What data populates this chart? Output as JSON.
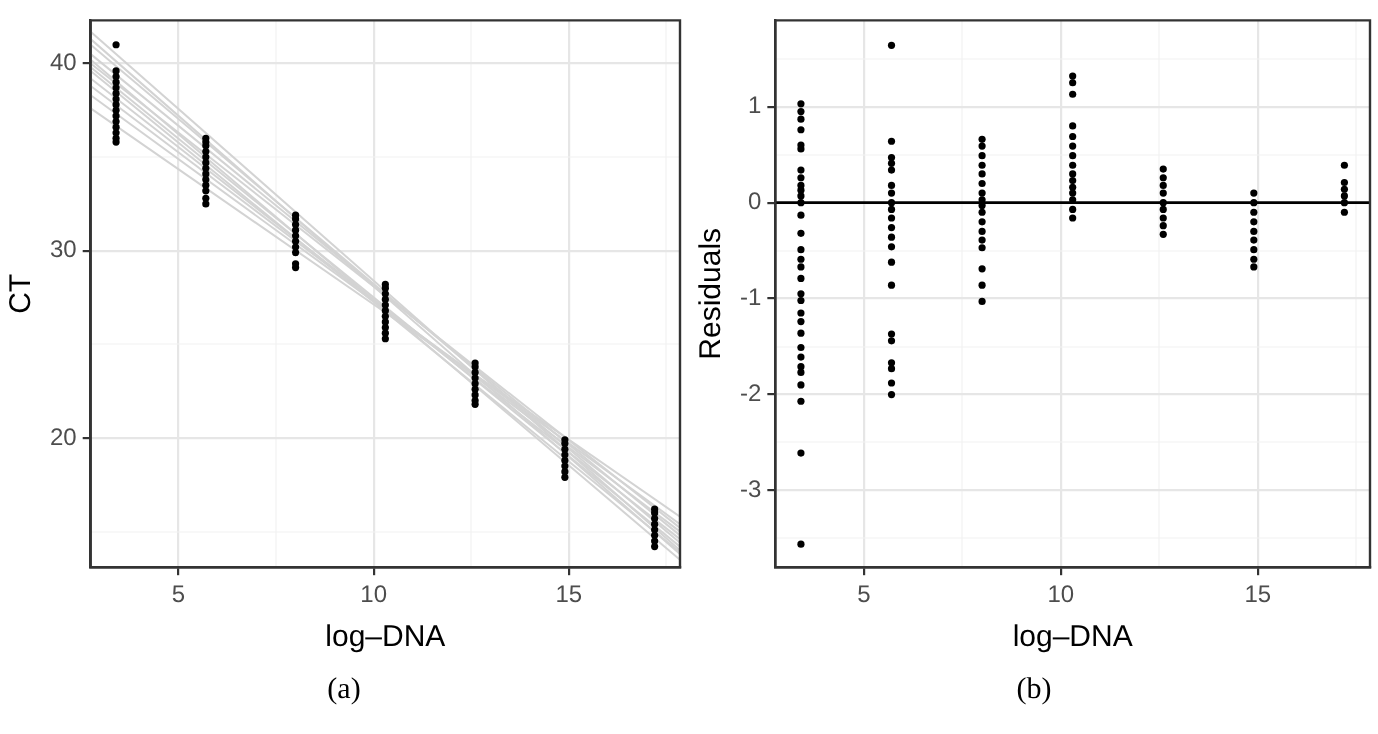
{
  "chart_data": [
    {
      "type": "scatter",
      "xlabel": "log–DNA",
      "ylabel": "CT",
      "annotations": [
        "(a)"
      ],
      "grid": true,
      "marker": "circle",
      "xlim": [
        2.75,
        17.85
      ],
      "xticks": [
        5,
        {
          "value": 7.5,
          "label": null
        },
        10,
        {
          "value": 12.5,
          "label": null
        },
        15,
        {
          "value": 17.5,
          "label": null
        }
      ],
      "ylim": [
        13.1,
        42.3
      ],
      "yticks": [
        {
          "value": 15,
          "label": null
        },
        20,
        {
          "value": 25,
          "label": null
        },
        30,
        {
          "value": 35,
          "label": null
        },
        40
      ],
      "series": [
        {
          "type": "line",
          "marker": "none",
          "color": "#d3d3d3",
          "x": [
            2.75,
            17.85
          ],
          "values": [
            41.7,
            14.0
          ]
        },
        {
          "type": "line",
          "marker": "none",
          "color": "#d3d3d3",
          "x": [
            2.75,
            17.85
          ],
          "values": [
            41.0,
            14.4
          ]
        },
        {
          "type": "line",
          "marker": "none",
          "color": "#d3d3d3",
          "x": [
            2.75,
            17.85
          ],
          "values": [
            40.5,
            14.8
          ]
        },
        {
          "type": "line",
          "marker": "none",
          "color": "#d3d3d3",
          "x": [
            2.75,
            17.85
          ],
          "values": [
            40.0,
            15.2
          ]
        },
        {
          "type": "line",
          "marker": "none",
          "color": "#d3d3d3",
          "x": [
            2.75,
            17.85
          ],
          "values": [
            39.6,
            13.9
          ]
        },
        {
          "type": "line",
          "marker": "none",
          "color": "#d3d3d3",
          "x": [
            2.75,
            17.85
          ],
          "values": [
            39.2,
            14.6
          ]
        },
        {
          "type": "line",
          "marker": "none",
          "color": "#d3d3d3",
          "x": [
            2.75,
            17.85
          ],
          "values": [
            38.8,
            15.0
          ]
        },
        {
          "type": "line",
          "marker": "none",
          "color": "#d3d3d3",
          "x": [
            2.75,
            17.85
          ],
          "values": [
            38.3,
            15.4
          ]
        },
        {
          "type": "line",
          "marker": "none",
          "color": "#d3d3d3",
          "x": [
            2.75,
            17.85
          ],
          "values": [
            37.6,
            15.8
          ]
        },
        {
          "type": "line",
          "marker": "none",
          "color": "#d3d3d3",
          "x": [
            2.75,
            17.85
          ],
          "values": [
            40.2,
            13.5
          ]
        },
        {
          "type": "line",
          "marker": "none",
          "color": "#d3d3d3",
          "x": [
            2.75,
            17.85
          ],
          "values": [
            39.8,
            14.2
          ]
        },
        {
          "type": "line",
          "marker": "none",
          "color": "#d3d3d3",
          "x": [
            2.75,
            17.85
          ],
          "values": [
            41.3,
            13.8
          ]
        },
        {
          "type": "scatter",
          "color": "#000000",
          "x": [
            3.4,
            3.4,
            3.4,
            3.4,
            3.4,
            3.4,
            3.4,
            3.4,
            3.4,
            3.4,
            3.4,
            3.4,
            3.4,
            3.4,
            3.4
          ],
          "values": [
            41.0,
            39.6,
            39.3,
            39.0,
            38.7,
            38.4,
            38.1,
            37.8,
            37.5,
            37.2,
            36.9,
            36.6,
            36.3,
            36.0,
            35.8
          ]
        },
        {
          "type": "scatter",
          "color": "#000000",
          "x": [
            5.7,
            5.7,
            5.7,
            5.7,
            5.7,
            5.7,
            5.7,
            5.7,
            5.7,
            5.7,
            5.7,
            5.7,
            5.7
          ],
          "values": [
            36.0,
            35.8,
            35.6,
            35.3,
            35.0,
            34.7,
            34.4,
            34.1,
            33.8,
            33.5,
            33.2,
            32.8,
            32.5
          ]
        },
        {
          "type": "scatter",
          "color": "#000000",
          "x": [
            8.0,
            8.0,
            8.0,
            8.0,
            8.0,
            8.0,
            8.0,
            8.0,
            8.0,
            8.0
          ],
          "values": [
            31.9,
            31.7,
            31.4,
            31.1,
            30.8,
            30.5,
            30.2,
            29.9,
            29.3,
            29.1
          ]
        },
        {
          "type": "scatter",
          "color": "#000000",
          "x": [
            10.3,
            10.3,
            10.3,
            10.3,
            10.3,
            10.3,
            10.3,
            10.3,
            10.3,
            10.3,
            10.3
          ],
          "values": [
            28.2,
            28.0,
            27.7,
            27.4,
            27.1,
            26.8,
            26.5,
            26.2,
            25.9,
            25.6,
            25.3
          ]
        },
        {
          "type": "scatter",
          "color": "#000000",
          "x": [
            12.6,
            12.6,
            12.6,
            12.6,
            12.6,
            12.6,
            12.6,
            12.6,
            12.6
          ],
          "values": [
            24.0,
            23.8,
            23.5,
            23.2,
            22.9,
            22.6,
            22.3,
            22.0,
            21.8
          ]
        },
        {
          "type": "scatter",
          "color": "#000000",
          "x": [
            14.9,
            14.9,
            14.9,
            14.9,
            14.9,
            14.9,
            14.9,
            14.9
          ],
          "values": [
            19.9,
            19.7,
            19.4,
            19.1,
            18.8,
            18.5,
            18.2,
            17.9
          ]
        },
        {
          "type": "scatter",
          "color": "#000000",
          "x": [
            17.2,
            17.2,
            17.2,
            17.2,
            17.2,
            17.2,
            17.2,
            17.2
          ],
          "values": [
            16.2,
            16.0,
            15.7,
            15.4,
            15.1,
            14.8,
            14.5,
            14.2
          ]
        }
      ]
    },
    {
      "type": "scatter",
      "xlabel": "log–DNA",
      "ylabel": "Residuals",
      "annotations": [
        "(b)"
      ],
      "grid": true,
      "marker": "circle",
      "xlim": [
        2.75,
        17.85
      ],
      "xticks": [
        5,
        {
          "value": 7.5,
          "label": null
        },
        10,
        {
          "value": 12.5,
          "label": null
        },
        15,
        {
          "value": 17.5,
          "label": null
        }
      ],
      "ylim": [
        -3.8,
        1.9
      ],
      "yticks": [
        {
          "value": -3.5,
          "label": null
        },
        -3,
        {
          "value": -2.5,
          "label": null
        },
        -2,
        {
          "value": -1.5,
          "label": null
        },
        -1,
        {
          "value": -0.5,
          "label": null
        },
        0,
        {
          "value": 0.5,
          "label": null
        },
        1,
        {
          "value": 1.5,
          "label": null
        }
      ],
      "ref_lines": [
        {
          "axis": "y",
          "value": 0,
          "color": "#000000"
        }
      ],
      "series": [
        {
          "type": "scatter",
          "color": "#000000",
          "x": [
            3.4,
            3.4,
            3.4,
            3.4,
            3.4,
            3.4,
            3.4,
            3.4,
            3.4,
            3.4,
            3.4,
            3.4,
            3.4,
            3.4,
            3.4,
            3.4,
            3.4,
            3.4,
            3.4,
            3.4,
            3.4,
            3.4,
            3.4,
            3.4,
            3.4,
            3.4,
            3.4,
            3.4,
            3.4,
            3.4,
            3.4
          ],
          "values": [
            1.03,
            0.95,
            0.87,
            0.76,
            0.6,
            0.56,
            0.34,
            0.26,
            0.18,
            0.13,
            0.07,
            0,
            -0.13,
            -0.32,
            -0.49,
            -0.59,
            -0.67,
            -0.79,
            -0.95,
            -1.02,
            -1.15,
            -1.24,
            -1.36,
            -1.51,
            -1.61,
            -1.71,
            -1.77,
            -1.9,
            -2.07,
            -2.61,
            -3.56
          ]
        },
        {
          "type": "scatter",
          "color": "#000000",
          "x": [
            5.7,
            5.7,
            5.7,
            5.7,
            5.7,
            5.7,
            5.7,
            5.7,
            5.7,
            5.7,
            5.7,
            5.7,
            5.7,
            5.7,
            5.7,
            5.7,
            5.7,
            5.7,
            5.7,
            5.7,
            5.7
          ],
          "values": [
            1.64,
            0.64,
            0.47,
            0.41,
            0.34,
            0.18,
            0.1,
            0,
            -0.07,
            -0.16,
            -0.26,
            -0.36,
            -0.46,
            -0.62,
            -0.86,
            -1.37,
            -1.44,
            -1.67,
            -1.73,
            -1.88,
            -2.0
          ]
        },
        {
          "type": "scatter",
          "color": "#000000",
          "x": [
            8.0,
            8.0,
            8.0,
            8.0,
            8.0,
            8.0,
            8.0,
            8.0,
            8.0,
            8.0,
            8.0,
            8.0,
            8.0,
            8.0,
            8.0,
            8.0,
            8.0
          ],
          "values": [
            0.66,
            0.59,
            0.49,
            0.39,
            0.3,
            0.2,
            0.1,
            0.03,
            -0.03,
            -0.1,
            -0.2,
            -0.3,
            -0.39,
            -0.47,
            -0.69,
            -0.86,
            -1.03
          ]
        },
        {
          "type": "scatter",
          "color": "#000000",
          "x": [
            10.3,
            10.3,
            10.3,
            10.3,
            10.3,
            10.3,
            10.3,
            10.3,
            10.3,
            10.3,
            10.3,
            10.3,
            10.3,
            10.3,
            10.3
          ],
          "values": [
            1.32,
            1.25,
            1.13,
            0.8,
            0.69,
            0.59,
            0.49,
            0.39,
            0.3,
            0.23,
            0.16,
            0.1,
            0.03,
            -0.07,
            -0.16
          ]
        },
        {
          "type": "scatter",
          "color": "#000000",
          "x": [
            12.6,
            12.6,
            12.6,
            12.6,
            12.6,
            12.6,
            12.6,
            12.6,
            12.6
          ],
          "values": [
            0.35,
            0.26,
            0.18,
            0.1,
            0,
            -0.07,
            -0.16,
            -0.24,
            -0.33
          ]
        },
        {
          "type": "scatter",
          "color": "#000000",
          "x": [
            14.9,
            14.9,
            14.9,
            14.9,
            14.9,
            14.9,
            14.9,
            14.9,
            14.9
          ],
          "values": [
            0.1,
            0,
            -0.1,
            -0.2,
            -0.3,
            -0.39,
            -0.49,
            -0.59,
            -0.67
          ]
        },
        {
          "type": "scatter",
          "color": "#000000",
          "x": [
            17.2,
            17.2,
            17.2,
            17.2,
            17.2,
            17.2
          ],
          "values": [
            0.39,
            0.21,
            0.14,
            0.07,
            0,
            -0.1
          ]
        }
      ]
    }
  ]
}
